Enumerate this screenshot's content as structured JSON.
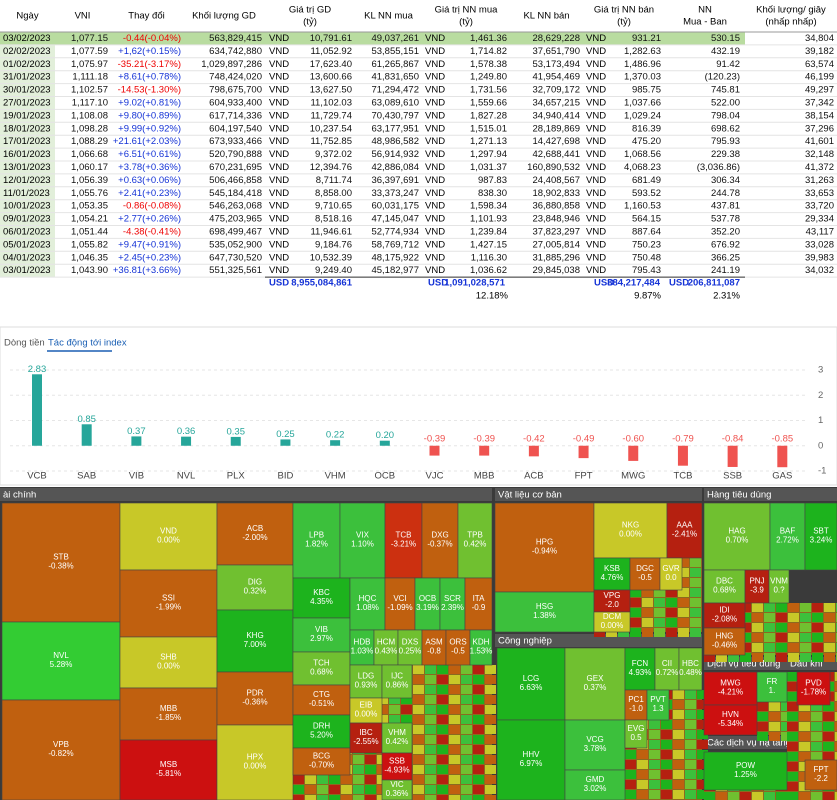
{
  "table": {
    "headers": [
      [
        "Ngày"
      ],
      [
        "VNI"
      ],
      [
        "Thay đổi"
      ],
      [
        "Khối lượng GD"
      ],
      [
        "Giá trị GD",
        "(tỷ)"
      ],
      [
        "KL NN mua"
      ],
      [
        "Giá trị NN mua",
        "(tỷ)"
      ],
      [
        "KL NN bán"
      ],
      [
        "Giá trị NN bán",
        "(tỷ)"
      ],
      [
        "NN",
        "Mua - Ban"
      ],
      [
        "Khối lượng/ giây",
        "(nhấp nhấp)"
      ]
    ],
    "currency": "VND",
    "rows": [
      [
        "03/02/2023",
        "1,077.15",
        "-0.44(-0.04%)",
        "563,829,415",
        "10,791.61",
        "49,037,261",
        "1,461.36",
        "28,629,228",
        "931.21",
        "530.15",
        "34,804"
      ],
      [
        "02/02/2023",
        "1,077.59",
        "+1,62(+0.15%)",
        "634,742,880",
        "11,052.92",
        "53,855,151",
        "1,714.82",
        "37,651,790",
        "1,282.63",
        "432.19",
        "39,182"
      ],
      [
        "01/02/2023",
        "1,075.97",
        "-35.21(-3.17%)",
        "1,029,897,286",
        "17,623.40",
        "61,265,867",
        "1,578.38",
        "53,173,494",
        "1,486.96",
        "91.42",
        "63,574"
      ],
      [
        "31/01/2023",
        "1,111.18",
        "+8.61(+0.78%)",
        "748,424,020",
        "13,600.66",
        "41,831,650",
        "1,249.80",
        "41,954,469",
        "1,370.03",
        "(120.23)",
        "46,199"
      ],
      [
        "30/01/2023",
        "1,102.57",
        "-14.53(-1.30%)",
        "798,675,700",
        "13,627.50",
        "71,294,472",
        "1,731.56",
        "32,709,172",
        "985.75",
        "745.81",
        "49,297"
      ],
      [
        "27/01/2023",
        "1,117.10",
        "+9.02(+0.81%)",
        "604,933,400",
        "11,102.03",
        "63,089,610",
        "1,559.66",
        "34,657,215",
        "1,037.66",
        "522.00",
        "37,342"
      ],
      [
        "19/01/2023",
        "1,108.08",
        "+9.80(+0.89%)",
        "617,714,336",
        "11,729.74",
        "70,430,797",
        "1,827.28",
        "34,940,414",
        "1,029.24",
        "798.04",
        "38,154"
      ],
      [
        "18/01/2023",
        "1,098.28",
        "+9.99(+0.92%)",
        "604,197,540",
        "10,237.54",
        "63,177,951",
        "1,515.01",
        "28,189,869",
        "816.39",
        "698.62",
        "37,296"
      ],
      [
        "17/01/2023",
        "1,088.29",
        "+21.61(+2.03%)",
        "673,933,466",
        "11,752.85",
        "48,986,582",
        "1,271.13",
        "14,427,698",
        "475.20",
        "795.93",
        "41,601"
      ],
      [
        "16/01/2023",
        "1,066.68",
        "+6.51(+0.61%)",
        "520,790,888",
        "9,372.02",
        "56,914,932",
        "1,297.94",
        "42,688,441",
        "1,068.56",
        "229.38",
        "32,148"
      ],
      [
        "13/01/2023",
        "1,060.17",
        "+3.78(+0.36%)",
        "670,231,695",
        "12,394.76",
        "42,886,084",
        "1,031.37",
        "160,890,532",
        "4,068.23",
        "(3,036.86)",
        "41,372"
      ],
      [
        "12/01/2023",
        "1,056.39",
        "+0.63(+0.06%)",
        "506,466,858",
        "8,711.74",
        "36,397,691",
        "987.83",
        "24,408,567",
        "681.49",
        "306.34",
        "31,263"
      ],
      [
        "11/01/2023",
        "1,055.76",
        "+2.41(+0.23%)",
        "545,184,418",
        "8,858.00",
        "33,373,247",
        "838.30",
        "18,902,833",
        "593.52",
        "244.78",
        "33,653"
      ],
      [
        "10/01/2023",
        "1,053.35",
        "-0.86(-0.08%)",
        "546,263,068",
        "9,710.65",
        "60,031,175",
        "1,598.34",
        "36,880,858",
        "1,160.53",
        "437.81",
        "33,720"
      ],
      [
        "09/01/2023",
        "1,054.21",
        "+2.77(+0.26%)",
        "475,203,965",
        "8,518.16",
        "47,145,047",
        "1,101.93",
        "23,848,946",
        "564.15",
        "537.78",
        "29,334"
      ],
      [
        "06/01/2023",
        "1,051.44",
        "-4.38(-0.41%)",
        "698,499,467",
        "11,946.61",
        "52,774,934",
        "1,239.84",
        "37,823,297",
        "887.64",
        "352.20",
        "43,117"
      ],
      [
        "05/01/2023",
        "1,055.82",
        "+9.47(+0.91%)",
        "535,052,900",
        "9,184.76",
        "58,769,712",
        "1,427.15",
        "27,005,814",
        "750.23",
        "676.92",
        "33,028"
      ],
      [
        "04/01/2023",
        "1,046.35",
        "+2.45(+0.23%)",
        "647,730,520",
        "10,532.39",
        "48,175,922",
        "1,116.30",
        "31,885,296",
        "750.48",
        "366.25",
        "39,983"
      ],
      [
        "03/01/2023",
        "1,043.90",
        "+36.81(+3.66%)",
        "551,325,561",
        "9,249.40",
        "45,182,977",
        "1,036.62",
        "29,845,038",
        "795.43",
        "241.19",
        "34,032"
      ]
    ],
    "totals": {
      "currency": "USD",
      "values": [
        "8,955,084,861",
        "1,091,028,571",
        "884,217,484",
        "206,811,087"
      ]
    },
    "ratios": [
      "12.18%",
      "9.87%",
      "2.31%"
    ]
  },
  "tabs": [
    "Dòng tiền",
    "Tác động tới index"
  ],
  "chart_data": {
    "type": "bar",
    "categories": [
      "VCB",
      "SAB",
      "VIB",
      "NVL",
      "PLX",
      "BID",
      "VHM",
      "OCB",
      "VJC",
      "MBB",
      "ACB",
      "FPT",
      "MWG",
      "TCB",
      "SSB",
      "GAS"
    ],
    "values": [
      2.83,
      0.85,
      0.37,
      0.36,
      0.35,
      0.25,
      0.22,
      0.2,
      -0.39,
      -0.39,
      -0.42,
      -0.49,
      -0.6,
      -0.79,
      -0.84,
      -0.85
    ],
    "value_labels": [
      "2.83",
      "0.85",
      "0.37",
      "0.36",
      "0.35",
      "0.25",
      "0.22",
      "0.20",
      "-0.39",
      "-0.39",
      "-0.42",
      "-0.49",
      "-0.60",
      "-0.79",
      "-0.84",
      "-0.85"
    ],
    "positive_color": "#26a69a",
    "negative_color": "#ef5350",
    "ylim": [
      -1,
      3
    ],
    "yticks": [
      -1,
      0,
      1,
      2,
      3
    ],
    "grid": true
  },
  "treemap": {
    "sectors": [
      "ài chính",
      "Vật liệu cơ bản",
      "Công nghiệp",
      "Hàng tiêu dùng",
      "Dịch vụ tiêu dùng",
      "Dầu khí",
      "Các dịch vụ hạ tầng"
    ],
    "tiles": [
      [
        "STB",
        "-0.38%"
      ],
      [
        "NVL",
        "5.28%"
      ],
      [
        "VPB",
        "-0.82%"
      ],
      [
        "VND",
        "0.00%"
      ],
      [
        "SSI",
        "-1.99%"
      ],
      [
        "SHB",
        "0.00%"
      ],
      [
        "MBB",
        "-1.85%"
      ],
      [
        "MSB",
        "-5.81%"
      ],
      [
        "ACB",
        "-2.00%"
      ],
      [
        "DIG",
        "0.32%"
      ],
      [
        "KHG",
        "7.00%"
      ],
      [
        "PDR",
        "-0.36%"
      ],
      [
        "HPX",
        "0.00%"
      ],
      [
        "LPB",
        "1.82%"
      ],
      [
        "VIX",
        "1.10%"
      ],
      [
        "TCB",
        "-3.21%"
      ],
      [
        "DXG",
        "-0.37%"
      ],
      [
        "TPB",
        "0.42%"
      ],
      [
        "KBC",
        "4.35%"
      ],
      [
        "VIB",
        "2.97%"
      ],
      [
        "TCH",
        "0.68%"
      ],
      [
        "CTG",
        "-0.51%"
      ],
      [
        "DRH",
        "5.20%"
      ],
      [
        "BCG",
        "-0.70%"
      ],
      [
        "HQC",
        "1.08%"
      ],
      [
        "VCI",
        "-1.09%"
      ],
      [
        "OCB",
        "3.19%"
      ],
      [
        "SCR",
        "2.39%"
      ],
      [
        "ITA",
        "-0.9"
      ],
      [
        "HDB",
        "1.03%"
      ],
      [
        "HCM",
        "0.43%"
      ],
      [
        "DXS",
        "0.25%"
      ],
      [
        "ASM",
        "-0.8"
      ],
      [
        "ORS",
        "-0.5"
      ],
      [
        "KDH",
        "1.53%"
      ],
      [
        "LDG",
        "0.93%"
      ],
      [
        "IJC",
        "0.86%"
      ],
      [
        "EIB",
        "0.00%"
      ],
      [
        "IBC",
        "-2.55%"
      ],
      [
        "VHM",
        "0.42%"
      ],
      [
        "SSB",
        "-4.93%"
      ],
      [
        "VIC",
        "0.36%"
      ],
      [
        "HPG",
        "-0.94%"
      ],
      [
        "HSG",
        "1.38%"
      ],
      [
        "NKG",
        "0.00%"
      ],
      [
        "AAA",
        "-2.41%"
      ],
      [
        "KSB",
        "4.76%"
      ],
      [
        "DGC",
        "-0.5"
      ],
      [
        "GVR",
        "0.0"
      ],
      [
        "VPG",
        "-2.0"
      ],
      [
        "DCM",
        "0.00%"
      ],
      [
        "LCG",
        "6.63%"
      ],
      [
        "HHV",
        "6.97%"
      ],
      [
        "GEX",
        "0.37%"
      ],
      [
        "VCG",
        "3.78%"
      ],
      [
        "GMD",
        "3.02%"
      ],
      [
        "FCN",
        "4.93%"
      ],
      [
        "CII",
        "0.72%"
      ],
      [
        "HBC",
        "0.48%"
      ],
      [
        "PC1",
        "-1.0"
      ],
      [
        "PVT",
        "1.3"
      ],
      [
        "EVG",
        "0.5"
      ],
      [
        "HAG",
        "0.70%"
      ],
      [
        "BAF",
        "2.72%"
      ],
      [
        "SBT",
        "3.24%"
      ],
      [
        "DBC",
        "0.68%"
      ],
      [
        "PNJ",
        "-3.9"
      ],
      [
        "VNM",
        "0.?"
      ],
      [
        "IDI",
        "-2.08%"
      ],
      [
        "HNG",
        "-0.46%"
      ],
      [
        "MWG",
        "-4.21%"
      ],
      [
        "HVN",
        "-5.34%"
      ],
      [
        "FR",
        "1."
      ],
      [
        "PVD",
        "-1.78%"
      ],
      [
        "POW",
        "1.25%"
      ],
      [
        "FPT",
        "-2.2"
      ]
    ]
  }
}
